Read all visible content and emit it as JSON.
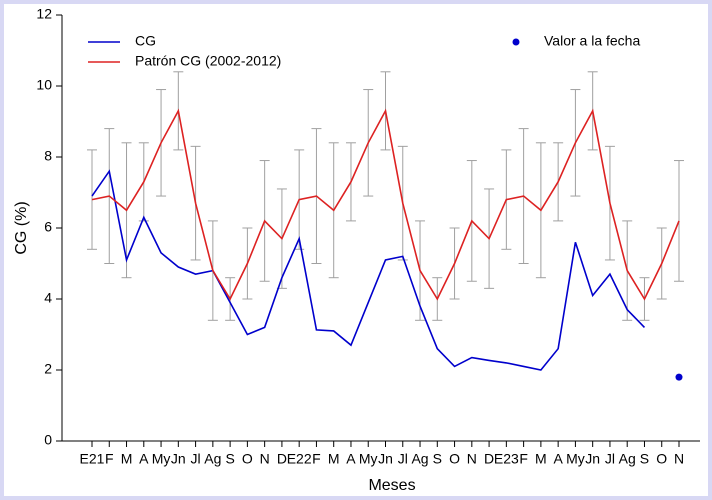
{
  "chart_data": {
    "type": "line",
    "xlabel": "Meses",
    "ylabel": "CG (%)",
    "categories": [
      "E21",
      "F",
      "M",
      "A",
      "My",
      "Jn",
      "Jl",
      "Ag",
      "S",
      "O",
      "N",
      "D",
      "E22",
      "F",
      "M",
      "A",
      "My",
      "Jn",
      "Jl",
      "Ag",
      "S",
      "O",
      "N",
      "D",
      "E23",
      "F",
      "M",
      "A",
      "My",
      "Jn",
      "Jl",
      "Ag",
      "S",
      "O",
      "N"
    ],
    "ylim": [
      0,
      12
    ],
    "yticks": [
      0,
      2,
      4,
      6,
      8,
      10,
      12
    ],
    "error_color": "#a0a0a0",
    "series": [
      {
        "name": "CG",
        "color": "#0000cc",
        "values": [
          6.9,
          7.6,
          5.1,
          6.3,
          5.3,
          4.9,
          4.7,
          4.8,
          3.9,
          3.0,
          3.2,
          4.6,
          5.7,
          3.13,
          3.1,
          2.7,
          3.9,
          5.1,
          5.2,
          3.8,
          2.6,
          2.1,
          2.35,
          2.27,
          2.2,
          2.1,
          2.0,
          2.6,
          5.6,
          4.1,
          4.7,
          3.7,
          3.2,
          null,
          null
        ]
      },
      {
        "name": "Patrón CG (2002-2012)",
        "color": "#dd2222",
        "values": [
          6.8,
          6.9,
          6.5,
          7.3,
          8.4,
          9.3,
          6.7,
          4.8,
          4.0,
          5.0,
          6.2,
          5.7,
          6.8,
          6.9,
          6.5,
          7.3,
          8.4,
          9.3,
          6.7,
          4.8,
          4.0,
          5.0,
          6.2,
          5.7,
          6.8,
          6.9,
          6.5,
          7.3,
          8.4,
          9.3,
          6.7,
          4.8,
          4.0,
          5.0,
          6.2
        ],
        "error_low": [
          5.4,
          5.0,
          4.6,
          6.2,
          6.9,
          8.2,
          5.1,
          3.4,
          3.4,
          4.0,
          4.5,
          4.3,
          5.4,
          5.0,
          4.6,
          6.2,
          6.9,
          8.2,
          5.1,
          3.4,
          3.4,
          4.0,
          4.5,
          4.3,
          5.4,
          5.0,
          4.6,
          6.2,
          6.9,
          8.2,
          5.1,
          3.4,
          3.4,
          4.0,
          4.5
        ],
        "error_high": [
          8.2,
          8.8,
          8.4,
          8.4,
          9.9,
          10.4,
          8.3,
          6.2,
          4.6,
          6.0,
          7.9,
          7.1,
          8.2,
          8.8,
          8.4,
          8.4,
          9.9,
          10.4,
          8.3,
          6.2,
          4.6,
          6.0,
          7.9,
          7.1,
          8.2,
          8.8,
          8.4,
          8.4,
          9.9,
          10.4,
          8.3,
          6.2,
          4.6,
          6.0,
          7.9
        ]
      },
      {
        "name": "Valor a la fecha",
        "color": "#0000cc",
        "marker": "point",
        "values": [
          null,
          null,
          null,
          null,
          null,
          null,
          null,
          null,
          null,
          null,
          null,
          null,
          null,
          null,
          null,
          null,
          null,
          null,
          null,
          null,
          null,
          null,
          null,
          null,
          null,
          null,
          null,
          null,
          null,
          null,
          null,
          null,
          null,
          null,
          1.8
        ]
      }
    ]
  }
}
